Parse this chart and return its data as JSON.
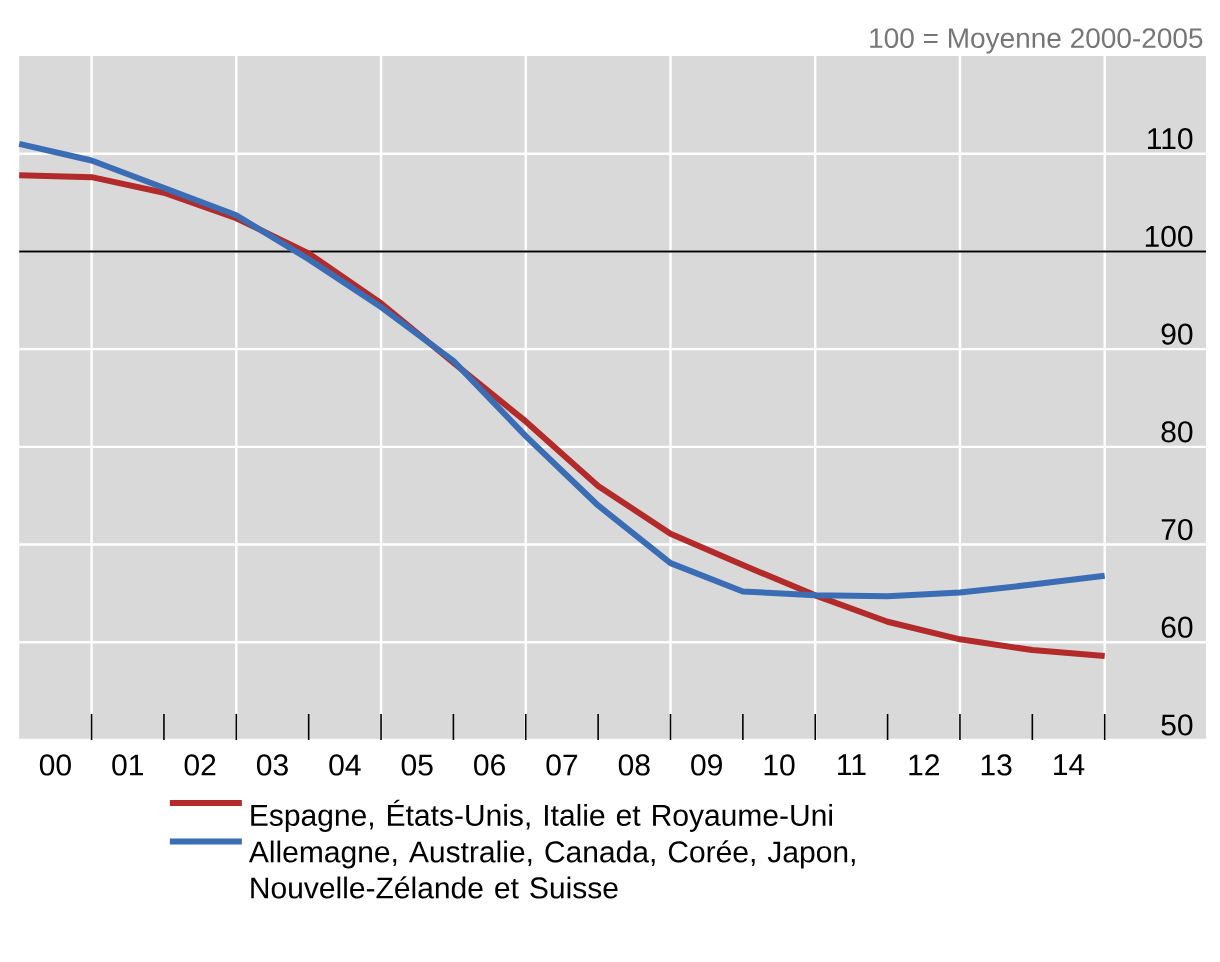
{
  "chart_data": {
    "type": "line",
    "annotations": [
      "100 = Moyenne 2000-2005"
    ],
    "x": [
      0,
      1,
      2,
      3,
      4,
      5,
      6,
      7,
      8,
      9,
      10,
      11,
      12,
      13,
      14,
      15
    ],
    "series": [
      {
        "name": "Espagne, États-Unis, Italie et Royaume-Uni",
        "color": "#b22a2a",
        "values": [
          107.8,
          107.6,
          106.0,
          103.4,
          99.8,
          94.7,
          88.6,
          82.6,
          76.0,
          71.1,
          67.9,
          64.8,
          62.1,
          60.3,
          59.2,
          58.6
        ]
      },
      {
        "name": "Allemagne, Australie, Canada, Corée, Japon, Nouvelle-Zélande et Suisse",
        "color": "#3b6db5",
        "values": [
          111.0,
          109.3,
          106.5,
          103.7,
          99.2,
          94.3,
          88.8,
          81.1,
          74.0,
          68.1,
          65.2,
          64.8,
          64.7,
          65.1,
          65.9,
          66.8
        ]
      }
    ],
    "xlim": [
      0,
      16.4
    ],
    "xticks": [
      {
        "value": 0.5,
        "label": "00"
      },
      {
        "value": 1.5,
        "label": "01"
      },
      {
        "value": 2.5,
        "label": "02"
      },
      {
        "value": 3.5,
        "label": "03"
      },
      {
        "value": 4.5,
        "label": "04"
      },
      {
        "value": 5.5,
        "label": "05"
      },
      {
        "value": 6.5,
        "label": "06"
      },
      {
        "value": 7.5,
        "label": "07"
      },
      {
        "value": 8.5,
        "label": "08"
      },
      {
        "value": 9.5,
        "label": "09"
      },
      {
        "value": 10.5,
        "label": "10"
      },
      {
        "value": 11.5,
        "label": "11"
      },
      {
        "value": 12.5,
        "label": "12"
      },
      {
        "value": 13.5,
        "label": "13"
      },
      {
        "value": 14.5,
        "label": "14"
      },
      {
        "value": 1,
        "label": null
      },
      {
        "value": 2,
        "label": null
      },
      {
        "value": 3,
        "label": null
      },
      {
        "value": 4,
        "label": null
      },
      {
        "value": 5,
        "label": null
      },
      {
        "value": 6,
        "label": null
      },
      {
        "value": 7,
        "label": null
      },
      {
        "value": 8,
        "label": null
      },
      {
        "value": 9,
        "label": null
      },
      {
        "value": 10,
        "label": null
      },
      {
        "value": 11,
        "label": null
      },
      {
        "value": 12,
        "label": null
      },
      {
        "value": 13,
        "label": null
      },
      {
        "value": 14,
        "label": null
      },
      {
        "value": 15,
        "label": null
      }
    ],
    "ylim": [
      50,
      120
    ],
    "yticks": [
      50,
      60,
      70,
      80,
      90,
      100,
      110
    ],
    "ref_lines": [
      {
        "axis": "y",
        "value": 100,
        "color": "#000000"
      }
    ],
    "grid": true,
    "legend": "bottom",
    "line_style": "solid",
    "marker": "none"
  }
}
